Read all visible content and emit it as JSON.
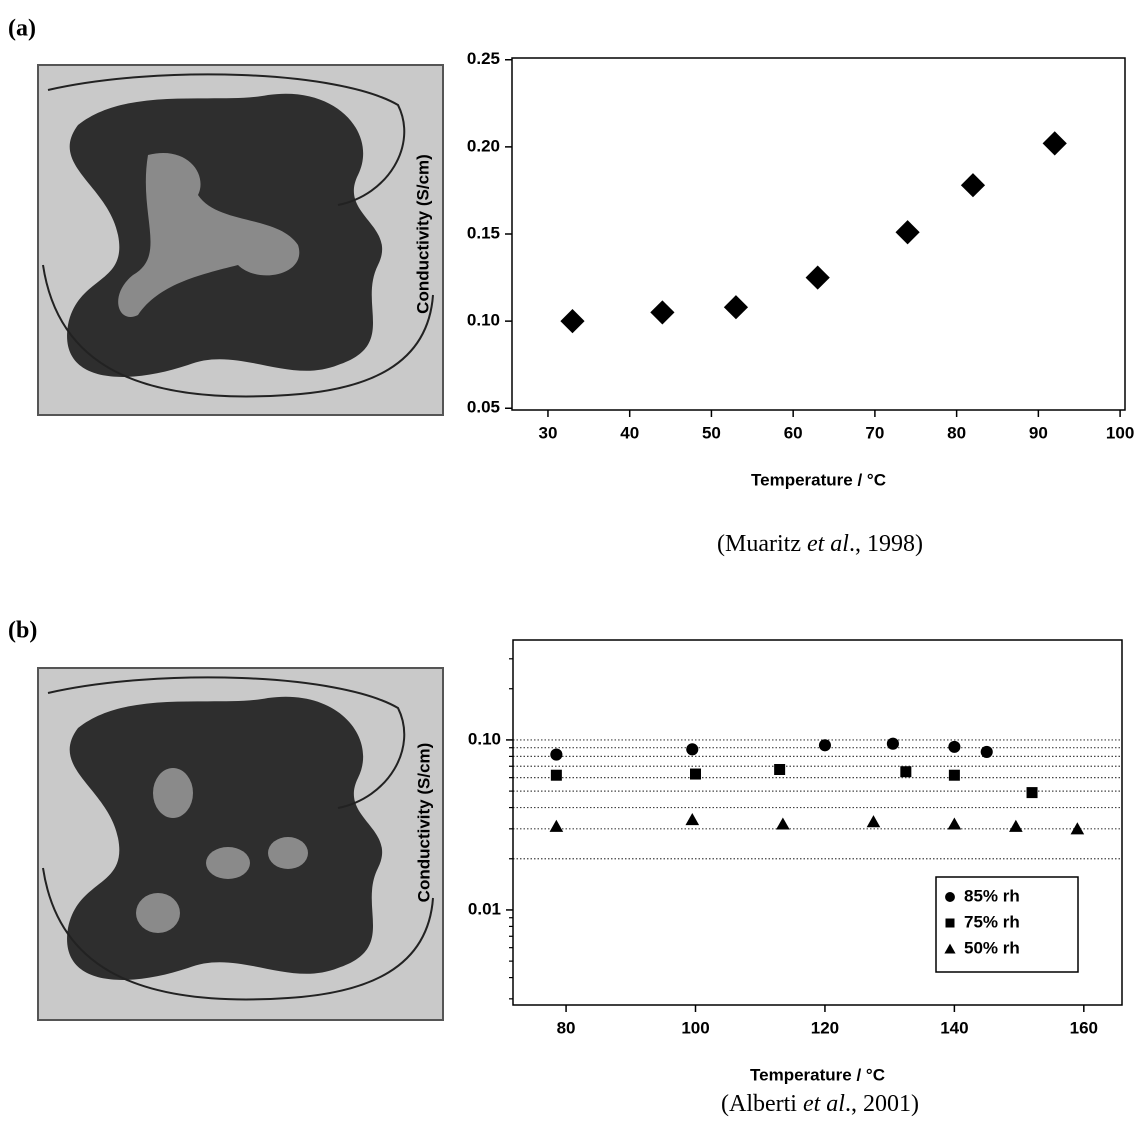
{
  "chart_data": [
    {
      "type": "scatter",
      "panel_label": "(a)",
      "x_label": "Temperature / °C",
      "y_label": "Conductivity (S/cm)",
      "caption": [
        "(Muaritz ",
        "et al",
        "., 1998)"
      ],
      "xlim": [
        25.6,
        100.6
      ],
      "ylim": [
        0.049,
        0.251
      ],
      "xticks": [
        30,
        40,
        50,
        60,
        70,
        80,
        90,
        100
      ],
      "yticks": [
        0.05,
        {
          "value": 0.1,
          "label": "0.10"
        },
        0.15,
        {
          "value": 0.2,
          "label": "0.20"
        },
        0.25
      ],
      "log_y": false,
      "series": [
        {
          "marker": "diamond",
          "color": "#000000",
          "x": [
            33,
            44,
            53,
            63,
            74,
            82,
            92
          ],
          "values": [
            0.1,
            0.105,
            0.108,
            0.125,
            0.151,
            0.178,
            0.202
          ]
        }
      ]
    },
    {
      "type": "scatter",
      "panel_label": "(b)",
      "x_label": "Temperature / °C",
      "y_label": "Conductivity (S/cm)",
      "caption": [
        "(Alberti ",
        "et al",
        "., 2001)"
      ],
      "xlim": [
        71.8,
        165.9
      ],
      "ylim": [
        0.00276,
        0.387
      ],
      "xticks": [
        80,
        100,
        120,
        140,
        160
      ],
      "yticks": [
        0.01,
        {
          "value": 0.1,
          "label": "0.10"
        }
      ],
      "minor_yticks": [
        0.003,
        0.004,
        0.005,
        0.006,
        0.007,
        0.008,
        0.009,
        0.02,
        0.03,
        0.04,
        0.05,
        0.06,
        0.07,
        0.08,
        0.09,
        0.2,
        0.3
      ],
      "grid_lines": [
        0.02,
        0.03,
        0.04,
        0.05,
        0.06,
        0.07,
        0.08,
        0.09,
        0.1
      ],
      "log_y": true,
      "series": [
        {
          "name": "85% rh",
          "marker": "circle",
          "color": "#000000",
          "x": [
            78.5,
            99.5,
            120,
            130.5,
            140,
            145
          ],
          "values": [
            0.082,
            0.088,
            0.093,
            0.095,
            0.091,
            0.085
          ]
        },
        {
          "name": "75% rh",
          "marker": "square",
          "color": "#000000",
          "x": [
            78.5,
            100,
            113,
            132.5,
            140,
            152
          ],
          "values": [
            0.062,
            0.063,
            0.067,
            0.065,
            0.062,
            0.049
          ]
        },
        {
          "name": "50% rh",
          "marker": "triangle",
          "color": "#000000",
          "x": [
            78.5,
            99.5,
            113.5,
            127.5,
            140,
            149.5,
            159
          ],
          "values": [
            0.031,
            0.034,
            0.032,
            0.033,
            0.032,
            0.031,
            0.03
          ]
        }
      ]
    }
  ]
}
